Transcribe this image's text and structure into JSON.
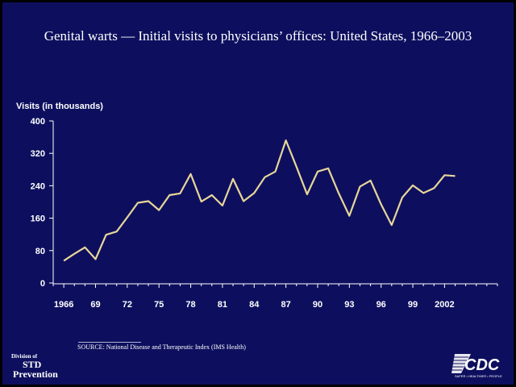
{
  "title": "Genital warts — Initial visits to physicians’ offices: United States, 1966–2003",
  "source": "SOURCE: National Disease and Therapeutic Index (IMS Health)",
  "logos": {
    "division_line1": "Division of",
    "division_line2": "STD",
    "division_line3": "Prevention",
    "cdc_text": "CDC",
    "cdc_tagline": "SAFER • HEALTHIER • PEOPLE"
  },
  "colors": {
    "background": "#0d0f5e",
    "line": "#e8d69a",
    "text": "#ffffff"
  },
  "chart_data": {
    "type": "line",
    "title": "Genital warts — Initial visits to physicians’ offices: United States, 1966–2003",
    "ylabel": "Visits (in thousands)",
    "xlabel": "",
    "xlim": [
      1965,
      2007
    ],
    "ylim": [
      0,
      400
    ],
    "yticks": [
      0,
      80,
      160,
      240,
      320,
      400
    ],
    "xtick_values": [
      1966,
      1969,
      1972,
      1975,
      1978,
      1981,
      1984,
      1987,
      1990,
      1993,
      1996,
      1999,
      2002
    ],
    "xtick_labels": [
      "1966",
      "69",
      "72",
      "75",
      "78",
      "81",
      "84",
      "87",
      "90",
      "93",
      "96",
      "99",
      "2002"
    ],
    "grid": false,
    "series": [
      {
        "x": [
          1966,
          1967,
          1968,
          1969,
          1970,
          1971,
          1972,
          1973,
          1974,
          1975,
          1976,
          1977,
          1978,
          1979,
          1980,
          1981,
          1982,
          1983,
          1984,
          1985,
          1986,
          1987,
          1988,
          1989,
          1990,
          1991,
          1992,
          1993,
          1994,
          1995,
          1996,
          1997,
          1998,
          1999,
          2000,
          2001,
          2002,
          2003
        ],
        "values": [
          55,
          72,
          88,
          59,
          119,
          127,
          162,
          198,
          202,
          180,
          217,
          221,
          269,
          201,
          217,
          191,
          257,
          202,
          222,
          261,
          275,
          352,
          287,
          219,
          275,
          283,
          221,
          166,
          238,
          253,
          194,
          143,
          211,
          241,
          222,
          234,
          266,
          264
        ]
      }
    ]
  }
}
